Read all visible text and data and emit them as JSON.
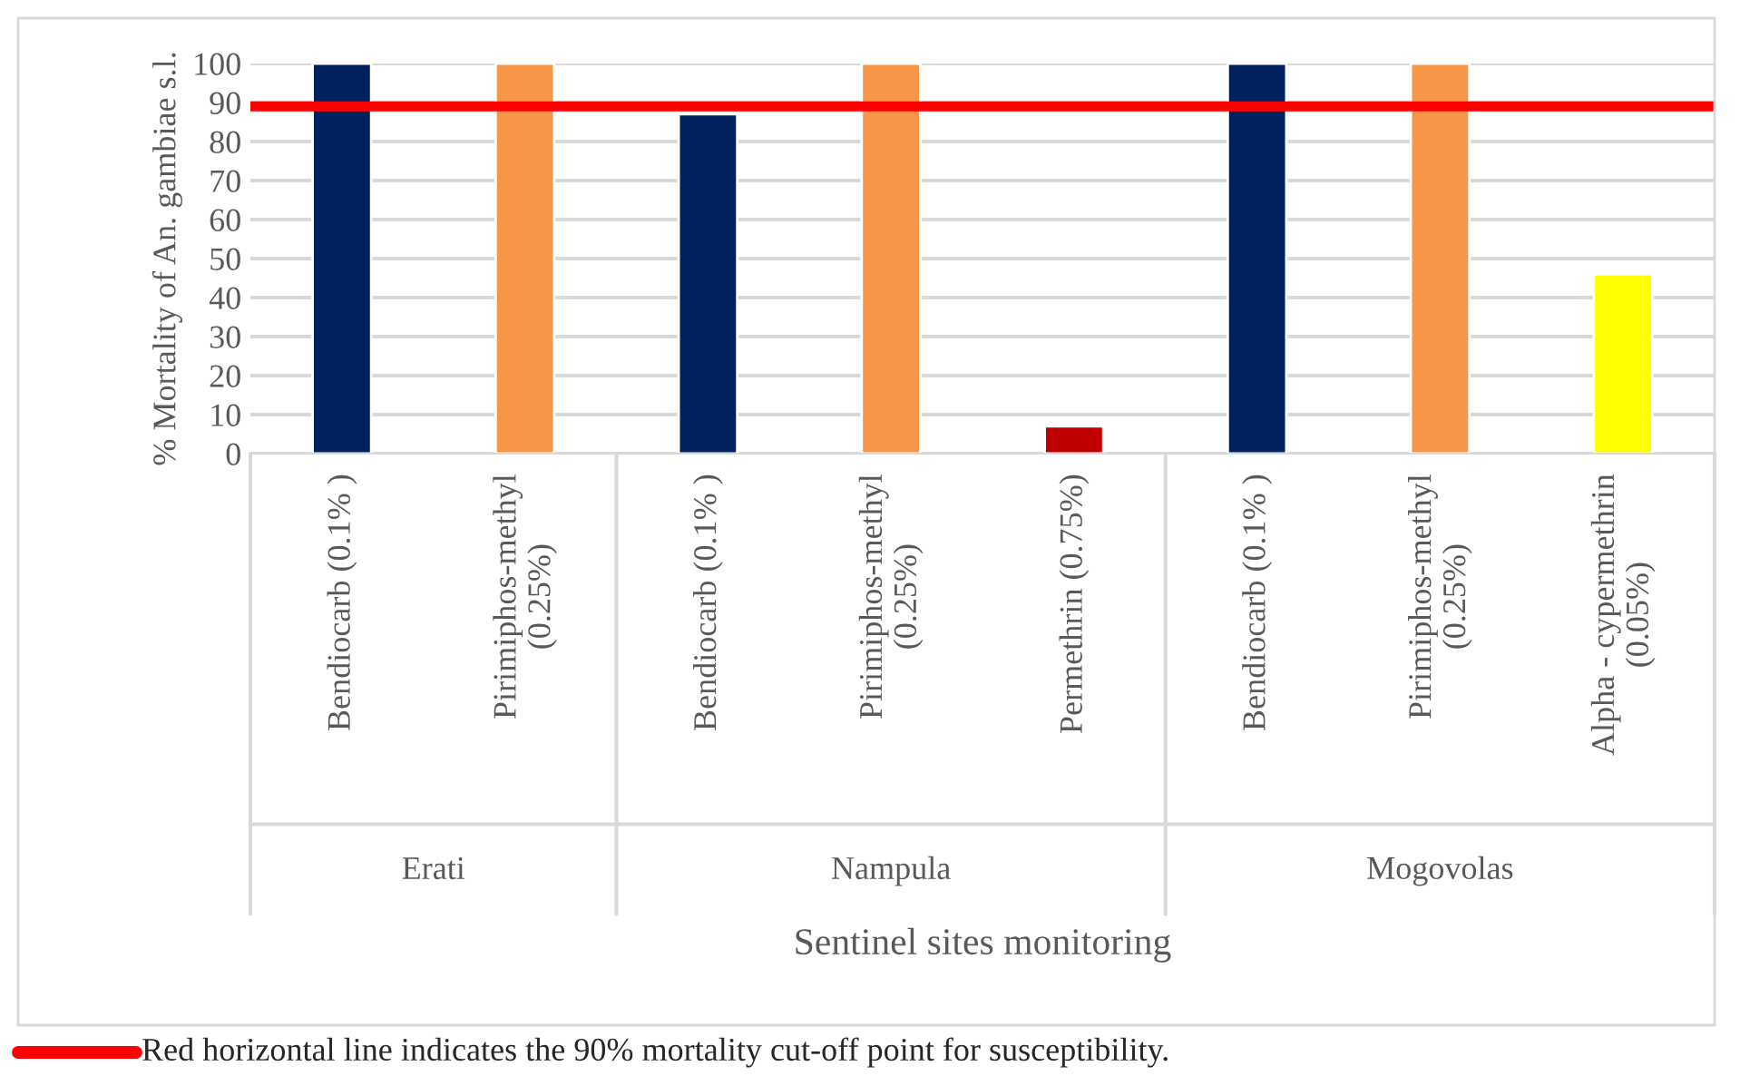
{
  "chart_data": {
    "type": "bar",
    "ylabel": "% Mortality of An. gambiae s.l.",
    "xlabel": "Sentinel sites monitoring",
    "categories": [
      "Bendiocarb (0.1% )",
      "Pirimiphos-methyl\n(0.25%)",
      "Bendiocarb (0.1% )",
      "Pirimiphos-methyl\n(0.25%)",
      "Permethrin (0.75%)",
      "Bendiocarb (0.1% )",
      "Pirimiphos-methyl\n(0.25%)",
      "Alpha - cypermethrin\n(0.05%)"
    ],
    "values": [
      100,
      100,
      87,
      100,
      7,
      100,
      100,
      46
    ],
    "colors": [
      "#002060",
      "#f79646",
      "#002060",
      "#f79646",
      "#c00000",
      "#002060",
      "#f79646",
      "#ffff00"
    ],
    "ylim": [
      0,
      100
    ],
    "yticks": [
      0,
      10,
      20,
      30,
      40,
      50,
      60,
      70,
      80,
      90,
      100
    ],
    "grid": "y",
    "ref_lines": [
      {
        "axis": "y",
        "value": 89,
        "label": "Red horizontal line indicates the 90% mortality cut-off point for susceptibility.",
        "color": "#ff0000"
      }
    ],
    "annotations": [
      "Erati",
      "Nampula",
      "Mogovolas"
    ]
  }
}
